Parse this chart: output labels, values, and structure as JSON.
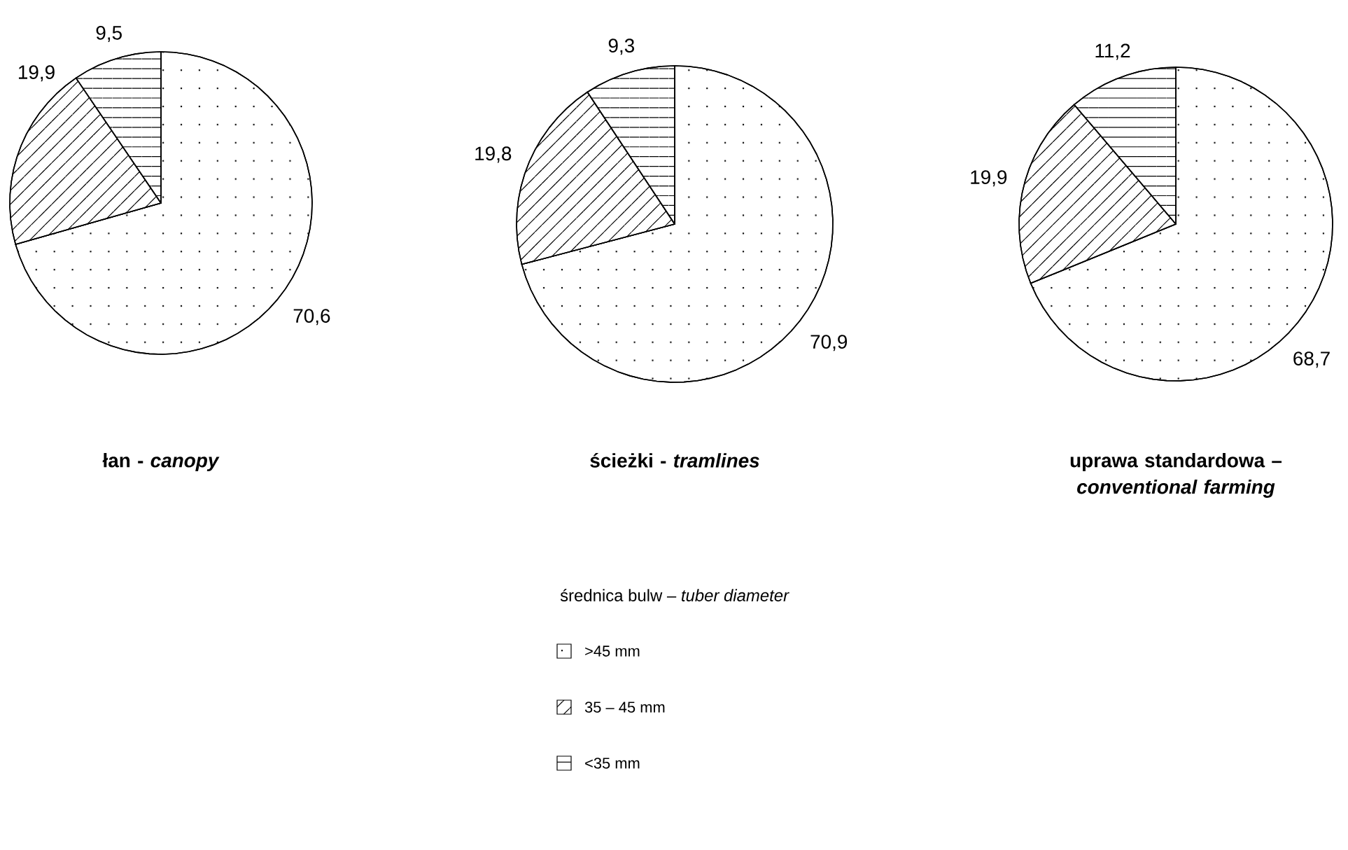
{
  "chart_data": [
    {
      "type": "pie",
      "title": "łan - *canopy*",
      "categories": [
        null,
        null,
        null
      ],
      "values": [
        70.6,
        19.9,
        9.5
      ],
      "colors": [
        "#ffffff",
        "#ffffff",
        "#ffffff"
      ],
      "value_labels": [
        "70,6",
        "19,9",
        "9,5"
      ]
    },
    {
      "type": "pie",
      "title": "ścieżki - *tramlines*",
      "categories": [
        ">45 mm",
        "35 – 45 mm",
        "<35 mm"
      ],
      "values": [
        70.9,
        19.8,
        9.3
      ],
      "colors": [
        "#ffffff",
        "#ffffff",
        "#ffffff"
      ],
      "value_labels": [
        "70,9",
        "19,8",
        "9,3"
      ],
      "legend": "bottom",
      "legend_title": "średnica bulw – *tuber diameter*"
    },
    {
      "type": "pie",
      "title": "uprawa standardowa – *conventional farming*",
      "categories": [
        null,
        null,
        null
      ],
      "values": [
        68.7,
        19.9,
        11.2
      ],
      "colors": [
        "#ffffff",
        "#ffffff",
        "#ffffff"
      ],
      "value_labels": [
        "68,7",
        "19,9",
        "11,2"
      ]
    }
  ]
}
